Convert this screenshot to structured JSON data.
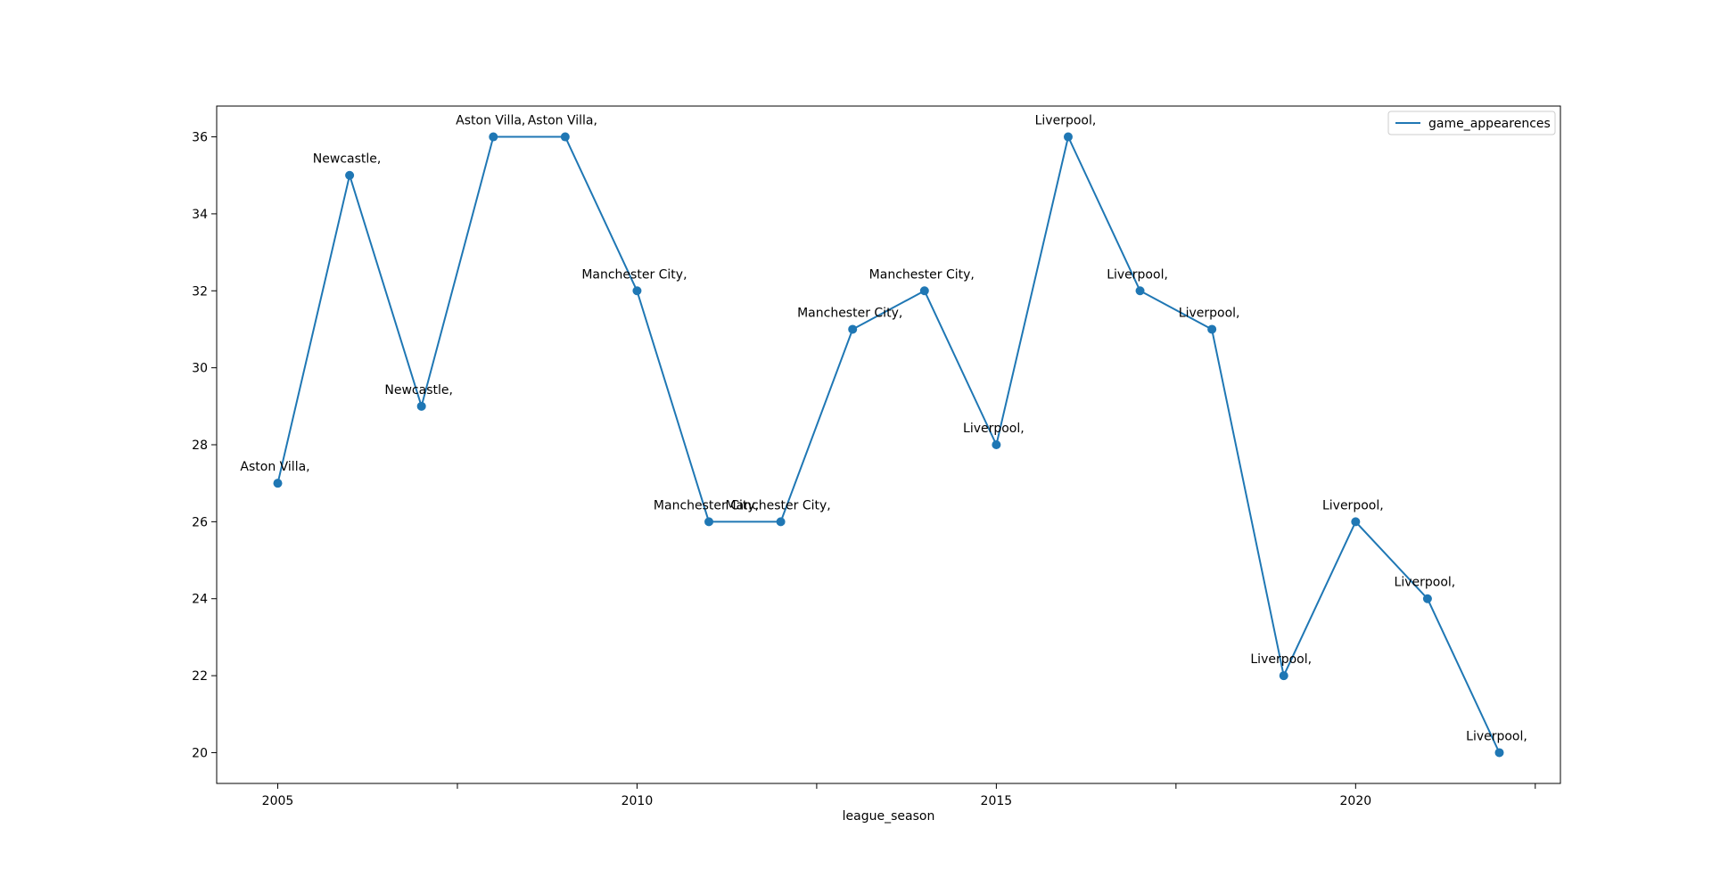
{
  "chart_data": {
    "type": "line",
    "title": "",
    "xlabel": "league_season",
    "ylabel": "",
    "xlim": [
      2004.15,
      2022.85
    ],
    "ylim": [
      19.2,
      36.8
    ],
    "grid": false,
    "legend": {
      "placement": "top-right",
      "entries": [
        "game_appearences"
      ]
    },
    "x_ticks_major": [
      2005,
      2010,
      2015,
      2020
    ],
    "x_ticks_minor": [
      2007.5,
      2012.5,
      2017.5,
      2022.5
    ],
    "y_ticks": [
      20,
      22,
      24,
      26,
      28,
      30,
      32,
      34,
      36
    ],
    "series": [
      {
        "name": "game_appearences",
        "color": "#1f77b4",
        "marker": "circle",
        "x": [
          2005,
          2006,
          2007,
          2008,
          2009,
          2010,
          2011,
          2012,
          2013,
          2014,
          2015,
          2016,
          2017,
          2018,
          2019,
          2020,
          2021,
          2022
        ],
        "y": [
          27,
          35,
          29,
          36,
          36,
          32,
          26,
          26,
          31,
          32,
          28,
          36,
          32,
          31,
          22,
          26,
          24,
          20
        ],
        "point_labels": [
          "Aston Villa,",
          "Newcastle,",
          "Newcastle,",
          "Aston Villa,",
          "Aston Villa,",
          "Manchester City,",
          "Manchester City,",
          "Manchester City,",
          "Manchester City,",
          "Manchester City,",
          "Liverpool,",
          "Liverpool,",
          "Liverpool,",
          "Liverpool,",
          "Liverpool,",
          "Liverpool,",
          "Liverpool,",
          "Liverpool,"
        ]
      }
    ]
  }
}
